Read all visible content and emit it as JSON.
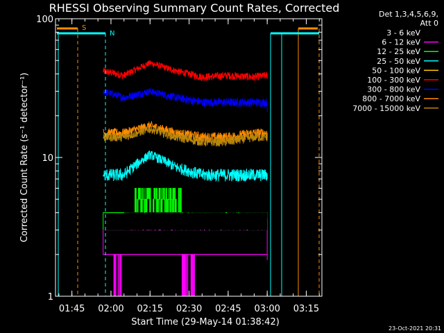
{
  "chart_data": {
    "type": "line",
    "title": "RHESSI Observing Summary Count Rates, Corrected",
    "xlabel": "Start Time (29-May-14 01:38:42)",
    "ylabel": "Corrected Count Rate (s⁻¹ detector⁻¹)",
    "yscale": "log",
    "ylim": [
      1,
      100
    ],
    "xlim_minutes": [
      "01:38:42",
      "03:21:00"
    ],
    "y_ticks": [
      "1",
      "10",
      "100"
    ],
    "x_ticks": [
      {
        "label": "01:45",
        "minutes": 105
      },
      {
        "label": "02:00",
        "minutes": 120
      },
      {
        "label": "02:15",
        "minutes": 135
      },
      {
        "label": "02:30",
        "minutes": 150
      },
      {
        "label": "02:45",
        "minutes": 165
      },
      {
        "label": "03:00",
        "minutes": 180
      },
      {
        "label": "03:15",
        "minutes": 195
      }
    ],
    "legend": {
      "placement": "right",
      "header": [
        "Det 1,3,4,5,6,9,",
        "Att 0"
      ],
      "entries": [
        {
          "label": "3 - 6 keV",
          "color": "#000000"
        },
        {
          "label": "6 - 12 keV",
          "color": "#ff00ff"
        },
        {
          "label": "12 - 25 keV",
          "color": "#00ff00"
        },
        {
          "label": "25 - 50 keV",
          "color": "#00ffff"
        },
        {
          "label": "50 - 100 keV",
          "color": "#ffd000"
        },
        {
          "label": "100 - 300 keV",
          "color": "#ff0000"
        },
        {
          "label": "300 - 800 keV",
          "color": "#0000ff"
        },
        {
          "label": "800 - 7000 keV",
          "color": "#ff8c00"
        },
        {
          "label": "7000 - 15000 keV",
          "color": "#b8860b"
        }
      ]
    },
    "series": [
      {
        "name": "100 - 300 keV",
        "color": "#ff0000",
        "x": [
          "01:57",
          "02:05",
          "02:15",
          "02:25",
          "02:35",
          "02:45",
          "02:55",
          "03:00"
        ],
        "y": [
          42,
          39,
          48,
          42,
          38,
          39,
          38,
          39
        ]
      },
      {
        "name": "300 - 800 keV",
        "color": "#0000ff",
        "x": [
          "01:57",
          "02:05",
          "02:15",
          "02:25",
          "02:35",
          "02:45",
          "02:55",
          "03:00"
        ],
        "y": [
          30,
          27,
          30,
          27,
          25,
          25,
          25,
          25
        ]
      },
      {
        "name": "800 - 7000 keV",
        "color": "#ff8c00",
        "x": [
          "01:57",
          "02:05",
          "02:15",
          "02:25",
          "02:35",
          "02:45",
          "02:55",
          "03:00"
        ],
        "y": [
          15,
          15,
          17,
          15,
          14,
          14,
          15,
          15
        ]
      },
      {
        "name": "7000 - 15000 keV",
        "color": "#b8860b",
        "x": [
          "01:57",
          "02:05",
          "02:15",
          "02:25",
          "02:35",
          "02:45",
          "02:55",
          "03:00"
        ],
        "y": [
          14,
          14,
          16,
          14,
          13,
          13,
          14,
          14
        ]
      },
      {
        "name": "25 - 50 keV",
        "color": "#00ffff",
        "x": [
          "01:57",
          "02:05",
          "02:15",
          "02:25",
          "02:35",
          "02:45",
          "02:55",
          "03:00"
        ],
        "y": [
          7.5,
          7.5,
          10.5,
          8.5,
          7.5,
          7.5,
          7.5,
          7.5
        ]
      },
      {
        "name": "12 - 25 keV",
        "color": "#00ff00",
        "x": [
          "01:57",
          "02:05",
          "02:15",
          "02:25",
          "02:35",
          "02:45",
          "02:55",
          "03:00"
        ],
        "y": [
          4,
          4,
          5,
          4.5,
          4,
          4,
          4,
          4
        ]
      },
      {
        "name": "3 - 6 keV",
        "color": "#000000",
        "x": [
          "01:57",
          "02:05",
          "02:15",
          "02:25",
          "02:35",
          "02:45",
          "02:55",
          "03:00"
        ],
        "y": [
          3.5,
          3.5,
          4.5,
          4,
          4,
          4,
          4,
          4
        ]
      },
      {
        "name": "6 - 12 keV",
        "color": "#ff00ff",
        "x": [
          "01:57",
          "02:05",
          "02:15",
          "02:25",
          "02:35",
          "02:45",
          "02:55",
          "03:00"
        ],
        "y": [
          2.2,
          2.2,
          2.5,
          2.2,
          2.2,
          2.2,
          2.2,
          2.2
        ]
      }
    ],
    "markers": [
      {
        "label": "S",
        "color": "#ff8c00"
      },
      {
        "label": "N",
        "color": "#00ffff"
      }
    ],
    "footer_date": "23-Oct-2021 20:31"
  }
}
